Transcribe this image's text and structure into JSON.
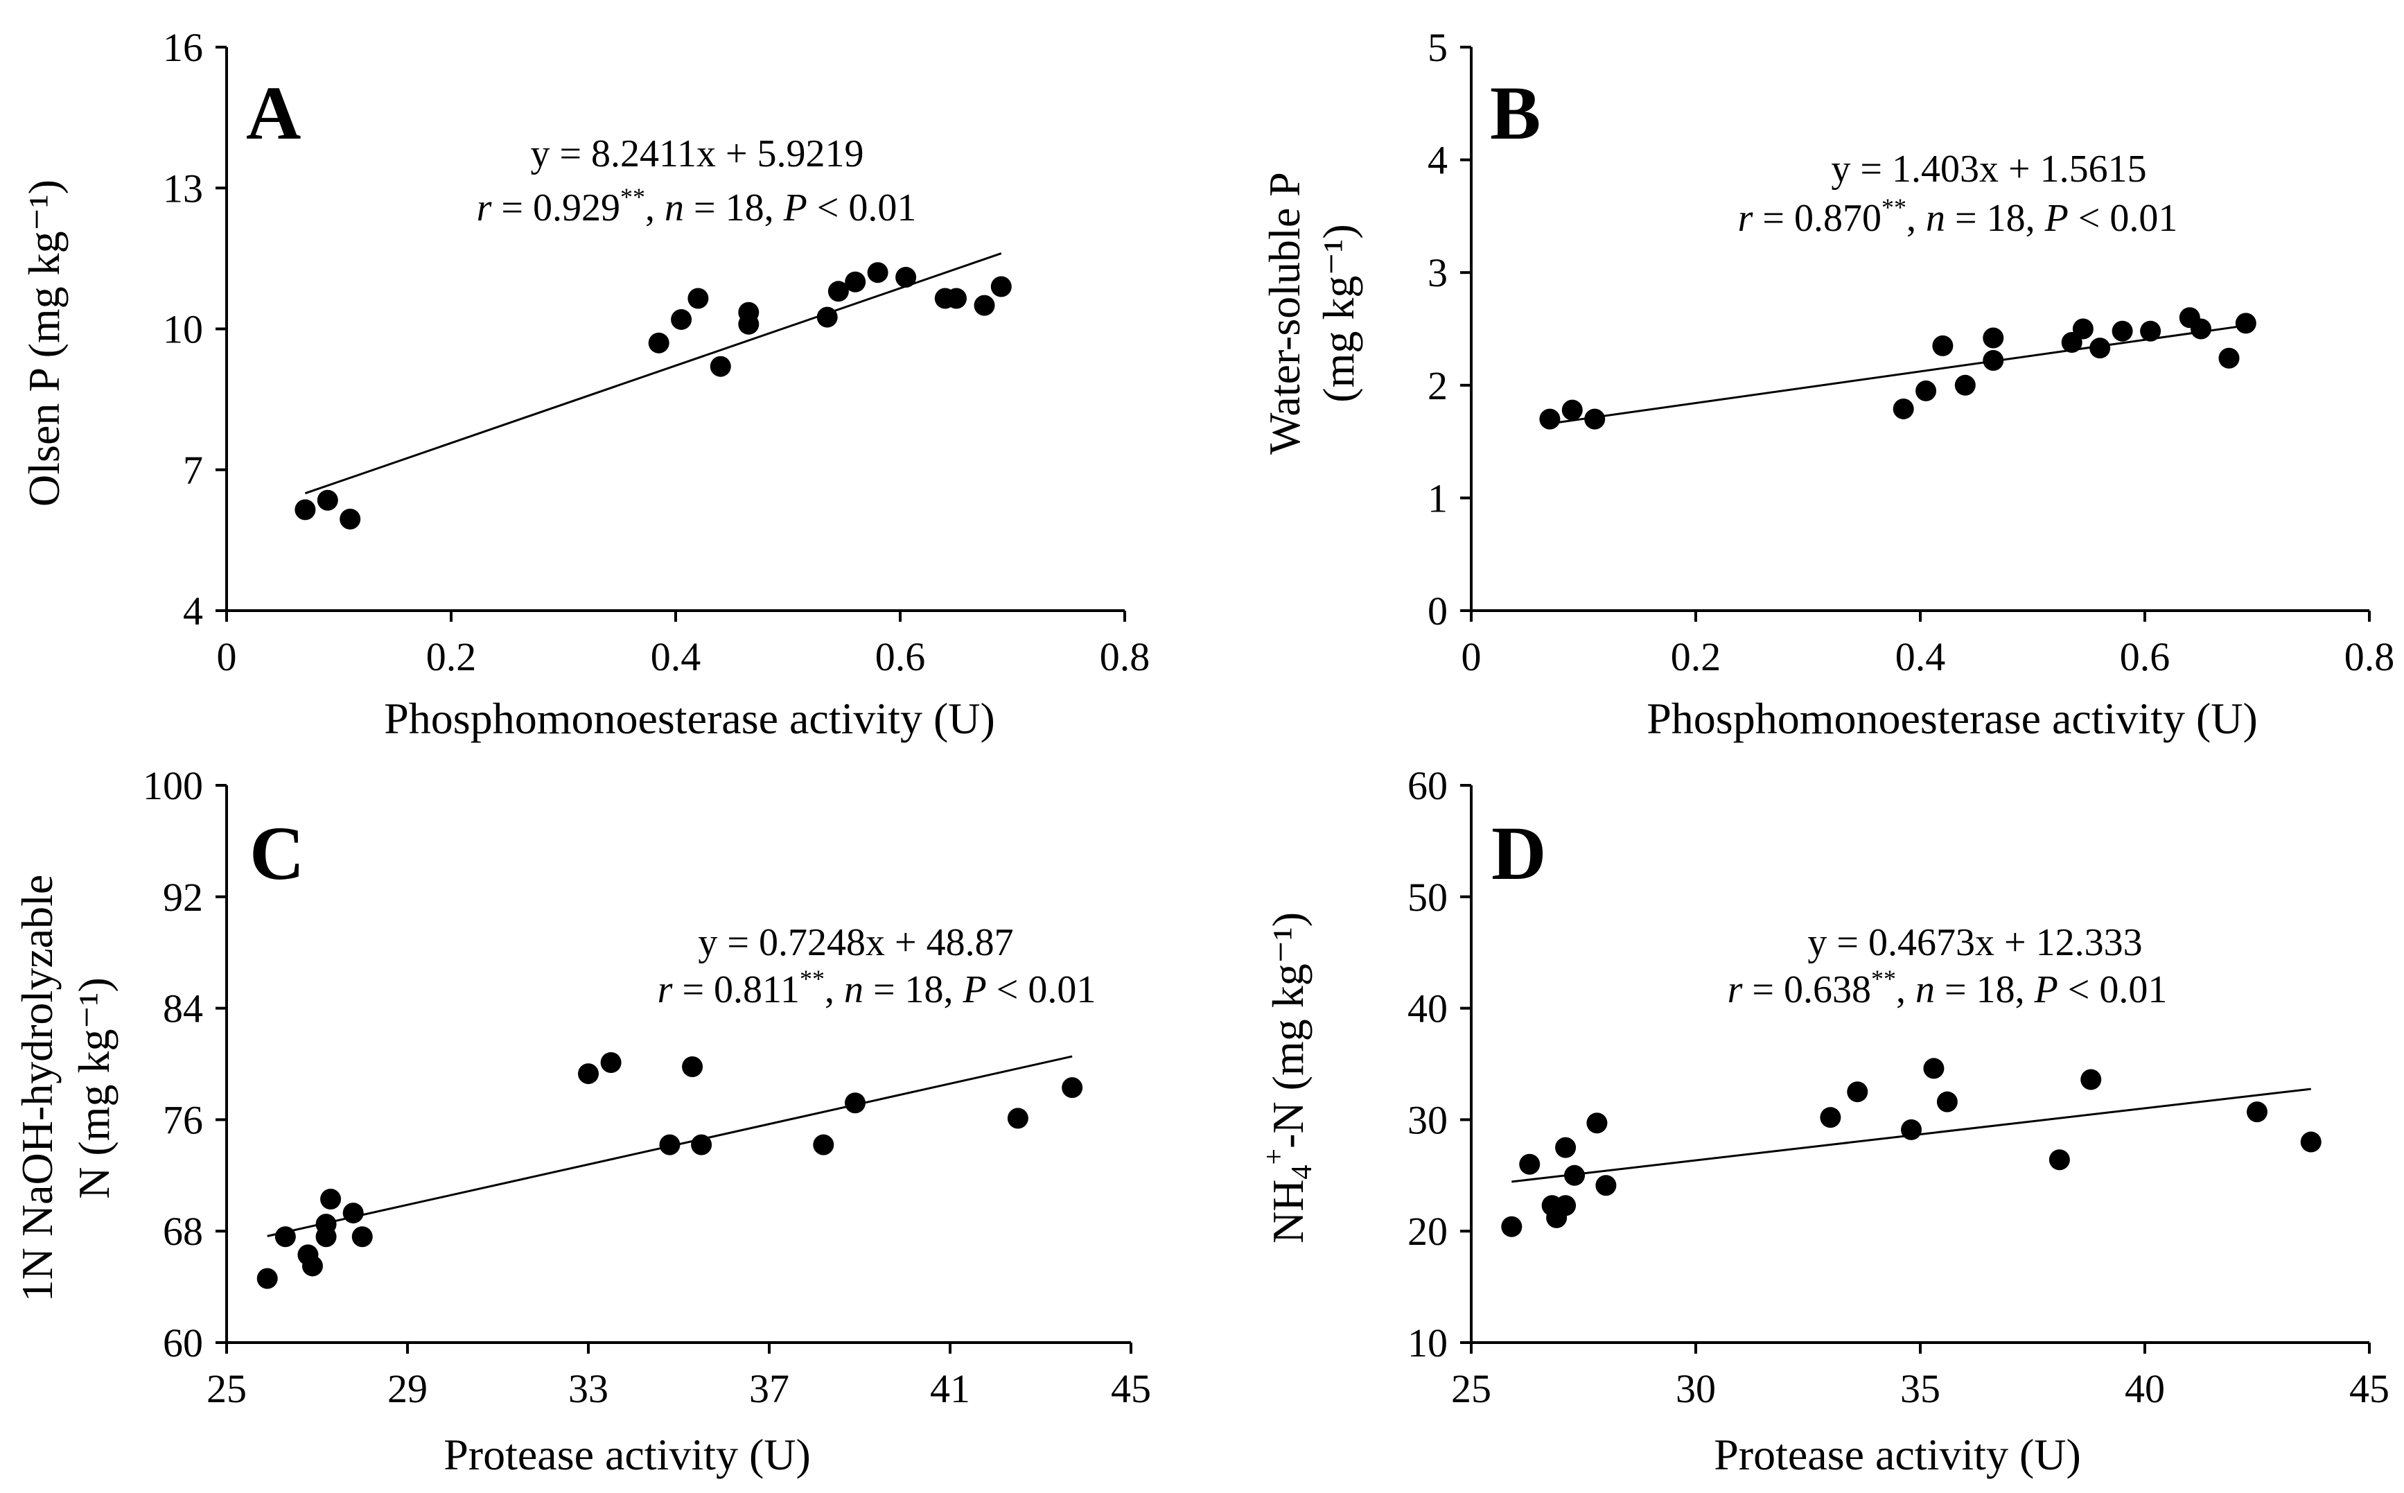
{
  "figure": {
    "panels": [
      {
        "panel_label": "A",
        "ylabel_lines": [
          "Olsen P (mg kg⁻¹)"
        ],
        "xlabel": "Phosphomonoesterase activity (U)",
        "equation": "y = 8.2411x + 5.9219",
        "stats": {
          "r": "r",
          "r_value": " = 0.929",
          "stars": "**",
          "sep": ", ",
          "n": "n",
          "n_value": " = 18, ",
          "p": "P",
          "p_value": " < 0.01"
        }
      },
      {
        "panel_label": "B",
        "ylabel_lines": [
          "Water-soluble P",
          "(mg kg⁻¹)"
        ],
        "xlabel": "Phosphomonoesterase activity (U)",
        "equation": "y = 1.403x + 1.5615",
        "stats": {
          "r": "r",
          "r_value": " = 0.870",
          "stars": "**",
          "sep": ", ",
          "n": "n",
          "n_value": " = 18, ",
          "p": "P",
          "p_value": " < 0.01"
        }
      },
      {
        "panel_label": "C",
        "ylabel_lines": [
          "1N NaOH-hydrolyzable",
          "N (mg kg⁻¹)"
        ],
        "xlabel": "Protease activity (U)",
        "equation": "y = 0.7248x + 48.87",
        "stats": {
          "r": "r",
          "r_value": " = 0.811",
          "stars": "**",
          "sep": ", ",
          "n": "n",
          "n_value": " = 18, ",
          "p": "P",
          "p_value": " < 0.01"
        }
      },
      {
        "panel_label": "D",
        "ylabel_nh4": {
          "base": "NH",
          "sub": "4",
          "sup": "+",
          "rest": "-N (mg kg⁻¹)"
        },
        "xlabel": "Protease activity (U)",
        "equation": "y = 0.4673x + 12.333",
        "stats": {
          "r": "r",
          "r_value": " = 0.638",
          "stars": "**",
          "sep": ", ",
          "n": "n",
          "n_value": " = 18, ",
          "p": "P",
          "p_value": " < 0.01"
        }
      }
    ]
  },
  "chart_data": [
    {
      "type": "scatter",
      "panel": "A",
      "title": "",
      "xlabel": "Phosphomonoesterase activity (U)",
      "ylabel": "Olsen P (mg kg⁻¹)",
      "xlim": [
        0,
        0.8
      ],
      "ylim": [
        4,
        16
      ],
      "xticks": [
        0,
        0.2,
        0.4,
        0.6,
        0.8
      ],
      "xtick_labels": [
        "0",
        "0.2",
        "0.4",
        "0.6",
        "0.8"
      ],
      "yticks": [
        4,
        7,
        10,
        13,
        16
      ],
      "ytick_labels": [
        "4",
        "7",
        "10",
        "13",
        "16"
      ],
      "points": [
        [
          0.07,
          6.15
        ],
        [
          0.09,
          6.35
        ],
        [
          0.11,
          5.95
        ],
        [
          0.385,
          9.7
        ],
        [
          0.405,
          10.2
        ],
        [
          0.42,
          10.65
        ],
        [
          0.44,
          9.2
        ],
        [
          0.465,
          10.35
        ],
        [
          0.465,
          10.1
        ],
        [
          0.535,
          10.25
        ],
        [
          0.545,
          10.8
        ],
        [
          0.56,
          11.0
        ],
        [
          0.58,
          11.2
        ],
        [
          0.605,
          11.1
        ],
        [
          0.64,
          10.65
        ],
        [
          0.65,
          10.65
        ],
        [
          0.675,
          10.5
        ],
        [
          0.69,
          10.9
        ]
      ],
      "trendline": {
        "slope": 8.2411,
        "intercept": 5.9219,
        "x_range": [
          0.07,
          0.69
        ]
      }
    },
    {
      "type": "scatter",
      "panel": "B",
      "title": "",
      "xlabel": "Phosphomonoesterase activity (U)",
      "ylabel": "Water-soluble P (mg kg⁻¹)",
      "xlim": [
        0,
        0.8
      ],
      "ylim": [
        0,
        5
      ],
      "xticks": [
        0,
        0.2,
        0.4,
        0.6,
        0.8
      ],
      "xtick_labels": [
        "0",
        "0.2",
        "0.4",
        "0.6",
        "0.8"
      ],
      "yticks": [
        0,
        1,
        2,
        3,
        4,
        5
      ],
      "ytick_labels": [
        "0",
        "1",
        "2",
        "3",
        "4",
        "5"
      ],
      "points": [
        [
          0.07,
          1.7
        ],
        [
          0.09,
          1.78
        ],
        [
          0.11,
          1.7
        ],
        [
          0.385,
          1.79
        ],
        [
          0.405,
          1.95
        ],
        [
          0.42,
          2.35
        ],
        [
          0.44,
          2.0
        ],
        [
          0.465,
          2.42
        ],
        [
          0.465,
          2.22
        ],
        [
          0.535,
          2.38
        ],
        [
          0.545,
          2.5
        ],
        [
          0.56,
          2.33
        ],
        [
          0.58,
          2.48
        ],
        [
          0.605,
          2.48
        ],
        [
          0.64,
          2.6
        ],
        [
          0.65,
          2.5
        ],
        [
          0.675,
          2.24
        ],
        [
          0.69,
          2.55
        ]
      ],
      "trendline": {
        "slope": 1.403,
        "intercept": 1.5615,
        "x_range": [
          0.07,
          0.69
        ]
      }
    },
    {
      "type": "scatter",
      "panel": "C",
      "title": "",
      "xlabel": "Protease activity (U)",
      "ylabel": "1N NaOH-hydrolyzable N (mg kg⁻¹)",
      "xlim": [
        25,
        45
      ],
      "ylim": [
        60,
        100
      ],
      "xticks": [
        25,
        29,
        33,
        37,
        41,
        45
      ],
      "xtick_labels": [
        "25",
        "29",
        "33",
        "37",
        "41",
        "45"
      ],
      "yticks": [
        60,
        68,
        76,
        84,
        92,
        100
      ],
      "ytick_labels": [
        "60",
        "68",
        "76",
        "84",
        "92",
        "100"
      ],
      "points": [
        [
          25.9,
          64.6
        ],
        [
          26.3,
          67.6
        ],
        [
          26.8,
          66.3
        ],
        [
          26.9,
          65.5
        ],
        [
          27.2,
          67.6
        ],
        [
          27.2,
          68.5
        ],
        [
          27.3,
          70.3
        ],
        [
          27.8,
          69.3
        ],
        [
          28.0,
          67.6
        ],
        [
          33.0,
          79.3
        ],
        [
          33.5,
          80.1
        ],
        [
          34.8,
          74.2
        ],
        [
          35.3,
          79.8
        ],
        [
          35.5,
          74.2
        ],
        [
          38.2,
          74.2
        ],
        [
          38.9,
          77.2
        ],
        [
          42.5,
          76.1
        ],
        [
          43.7,
          78.3
        ]
      ],
      "trendline": {
        "slope": 0.7248,
        "intercept": 48.87,
        "x_range": [
          25.9,
          43.7
        ]
      }
    },
    {
      "type": "scatter",
      "panel": "D",
      "title": "",
      "xlabel": "Protease activity (U)",
      "ylabel": "NH4+-N (mg kg⁻¹)",
      "xlim": [
        25,
        45
      ],
      "ylim": [
        10,
        60
      ],
      "xticks": [
        25,
        30,
        35,
        40,
        45
      ],
      "xtick_labels": [
        "25",
        "30",
        "35",
        "40",
        "45"
      ],
      "yticks": [
        10,
        20,
        30,
        40,
        50,
        60
      ],
      "ytick_labels": [
        "10",
        "20",
        "30",
        "40",
        "50",
        "60"
      ],
      "points": [
        [
          25.9,
          20.4
        ],
        [
          26.3,
          26.0
        ],
        [
          26.8,
          22.3
        ],
        [
          26.9,
          21.2
        ],
        [
          27.1,
          22.3
        ],
        [
          27.1,
          27.5
        ],
        [
          27.3,
          25.0
        ],
        [
          27.8,
          29.7
        ],
        [
          28.0,
          24.1
        ],
        [
          33.0,
          30.2
        ],
        [
          33.6,
          32.5
        ],
        [
          34.8,
          29.1
        ],
        [
          35.3,
          34.6
        ],
        [
          35.6,
          31.6
        ],
        [
          38.1,
          26.4
        ],
        [
          38.8,
          33.6
        ],
        [
          42.5,
          30.7
        ],
        [
          43.7,
          28.0
        ]
      ],
      "trendline": {
        "slope": 0.4673,
        "intercept": 12.333,
        "x_range": [
          25.9,
          43.7
        ]
      }
    }
  ]
}
